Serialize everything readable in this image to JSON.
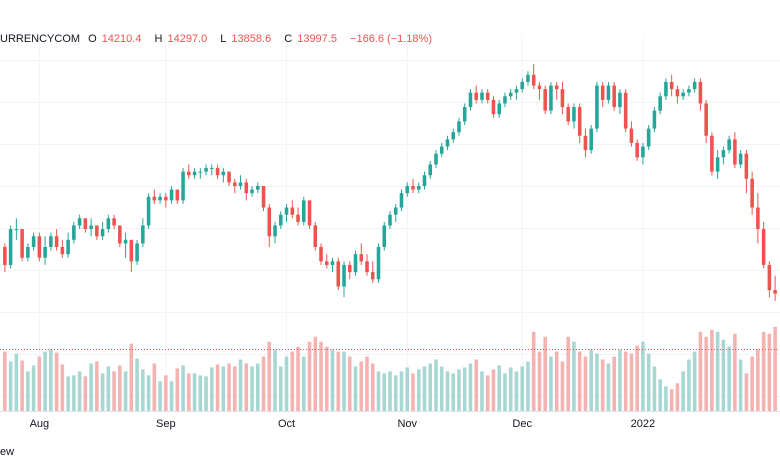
{
  "legend": {
    "symbol": "URRENCYCOM",
    "open_label": "O",
    "open": "14210.4",
    "high_label": "H",
    "high": "14297.0",
    "low_label": "L",
    "low": "13858.6",
    "close_label": "C",
    "close": "13997.5",
    "change": "−166.6 (−1.18%)"
  },
  "footer": {
    "text": "ew"
  },
  "colors": {
    "up": "#26a69a",
    "down": "#ef5350",
    "up_vol": "#a7d7d3",
    "down_vol": "#f4b2b1",
    "grid": "#f0f3fa",
    "text": "#131722"
  },
  "chart_data": {
    "type": "candlestick",
    "title": "",
    "x_tick_labels": [
      "Aug",
      "Sep",
      "Oct",
      "Nov",
      "Dec",
      "2022"
    ],
    "price_range": [
      13800,
      17200
    ],
    "volume_range": [
      0,
      100
    ],
    "candles": [
      [
        14650,
        14700,
        14300,
        14400,
        60
      ],
      [
        14400,
        14950,
        14350,
        14900,
        50
      ],
      [
        14900,
        15050,
        14750,
        14900,
        58
      ],
      [
        14900,
        14900,
        14450,
        14500,
        51
      ],
      [
        14500,
        14700,
        14450,
        14650,
        40
      ],
      [
        14650,
        14850,
        14600,
        14800,
        46
      ],
      [
        14800,
        14850,
        14450,
        14500,
        55
      ],
      [
        14500,
        14800,
        14400,
        14650,
        60
      ],
      [
        14650,
        14850,
        14600,
        14800,
        62
      ],
      [
        14800,
        14900,
        14600,
        14650,
        59
      ],
      [
        14650,
        14750,
        14500,
        14550,
        47
      ],
      [
        14550,
        14850,
        14500,
        14750,
        35
      ],
      [
        14750,
        15000,
        14700,
        14950,
        36
      ],
      [
        14950,
        15100,
        14900,
        15050,
        40
      ],
      [
        15050,
        15050,
        14850,
        14900,
        35
      ],
      [
        14900,
        15050,
        14800,
        14950,
        48
      ],
      [
        14950,
        14950,
        14750,
        14800,
        50
      ],
      [
        14800,
        15000,
        14750,
        14900,
        38
      ],
      [
        14900,
        15100,
        14850,
        15050,
        45
      ],
      [
        15050,
        15100,
        14900,
        14950,
        40
      ],
      [
        14950,
        14950,
        14650,
        14700,
        46
      ],
      [
        14700,
        14850,
        14500,
        14750,
        40
      ],
      [
        14750,
        14750,
        14300,
        14450,
        68
      ],
      [
        14450,
        14750,
        14400,
        14700,
        53
      ],
      [
        14700,
        15050,
        14650,
        14950,
        42
      ],
      [
        14950,
        15400,
        14900,
        15350,
        36
      ],
      [
        15350,
        15450,
        15250,
        15300,
        48
      ],
      [
        15300,
        15400,
        15250,
        15350,
        30
      ],
      [
        15350,
        15400,
        15200,
        15300,
        36
      ],
      [
        15300,
        15500,
        15250,
        15450,
        30
      ],
      [
        15450,
        15450,
        15250,
        15300,
        43
      ],
      [
        15300,
        15750,
        15250,
        15700,
        46
      ],
      [
        15700,
        15800,
        15600,
        15650,
        38
      ],
      [
        15650,
        15750,
        15600,
        15700,
        38
      ],
      [
        15700,
        15750,
        15600,
        15700,
        36
      ],
      [
        15700,
        15800,
        15650,
        15750,
        35
      ],
      [
        15750,
        15800,
        15650,
        15750,
        44
      ],
      [
        15750,
        15800,
        15600,
        15650,
        47
      ],
      [
        15650,
        15750,
        15550,
        15700,
        45
      ],
      [
        15700,
        15700,
        15500,
        15550,
        48
      ],
      [
        15550,
        15600,
        15400,
        15500,
        45
      ],
      [
        15500,
        15650,
        15450,
        15550,
        52
      ],
      [
        15550,
        15600,
        15300,
        15400,
        48
      ],
      [
        15400,
        15500,
        15350,
        15450,
        45
      ],
      [
        15450,
        15550,
        15400,
        15500,
        48
      ],
      [
        15500,
        15500,
        15150,
        15200,
        55
      ],
      [
        15200,
        15250,
        14650,
        14800,
        70
      ],
      [
        14800,
        15000,
        14700,
        14950,
        62
      ],
      [
        14950,
        15150,
        14900,
        15100,
        45
      ],
      [
        15100,
        15250,
        15000,
        15200,
        55
      ],
      [
        15200,
        15300,
        15050,
        15100,
        60
      ],
      [
        15100,
        15200,
        14950,
        15000,
        65
      ],
      [
        15000,
        15350,
        14950,
        15300,
        55
      ],
      [
        15300,
        15300,
        14900,
        14950,
        70
      ],
      [
        14950,
        15000,
        14600,
        14650,
        75
      ],
      [
        14650,
        14700,
        14400,
        14450,
        70
      ],
      [
        14450,
        14550,
        14350,
        14400,
        65
      ],
      [
        14400,
        14500,
        14300,
        14450,
        62
      ],
      [
        14450,
        14500,
        14050,
        14100,
        60
      ],
      [
        14100,
        14450,
        13950,
        14400,
        60
      ],
      [
        14400,
        14450,
        14200,
        14300,
        55
      ],
      [
        14300,
        14600,
        14250,
        14550,
        45
      ],
      [
        14550,
        14700,
        14400,
        14450,
        50
      ],
      [
        14450,
        14550,
        14250,
        14300,
        55
      ],
      [
        14300,
        14450,
        14150,
        14200,
        48
      ],
      [
        14200,
        14700,
        14150,
        14650,
        40
      ],
      [
        14650,
        15000,
        14600,
        14950,
        38
      ],
      [
        14950,
        15150,
        14900,
        15100,
        40
      ],
      [
        15100,
        15250,
        15000,
        15200,
        36
      ],
      [
        15200,
        15450,
        15150,
        15400,
        40
      ],
      [
        15400,
        15550,
        15350,
        15500,
        44
      ],
      [
        15500,
        15600,
        15400,
        15450,
        38
      ],
      [
        15450,
        15550,
        15400,
        15500,
        42
      ],
      [
        15500,
        15700,
        15450,
        15650,
        45
      ],
      [
        15650,
        15850,
        15600,
        15800,
        48
      ],
      [
        15800,
        16000,
        15750,
        15950,
        52
      ],
      [
        15950,
        16100,
        15900,
        16050,
        45
      ],
      [
        16050,
        16200,
        16000,
        16150,
        40
      ],
      [
        16150,
        16300,
        16100,
        16250,
        38
      ],
      [
        16250,
        16450,
        16200,
        16400,
        42
      ],
      [
        16400,
        16650,
        16350,
        16600,
        44
      ],
      [
        16600,
        16850,
        16550,
        16800,
        48
      ],
      [
        16800,
        16900,
        16650,
        16700,
        52
      ],
      [
        16700,
        16850,
        16650,
        16800,
        40
      ],
      [
        16800,
        16850,
        16650,
        16700,
        36
      ],
      [
        16700,
        16750,
        16450,
        16500,
        42
      ],
      [
        16500,
        16700,
        16450,
        16650,
        46
      ],
      [
        16650,
        16800,
        16600,
        16750,
        38
      ],
      [
        16750,
        16850,
        16700,
        16800,
        44
      ],
      [
        16800,
        16900,
        16700,
        16850,
        40
      ],
      [
        16850,
        17000,
        16800,
        16950,
        45
      ],
      [
        16950,
        17100,
        16900,
        17050,
        50
      ],
      [
        17050,
        17200,
        16850,
        16900,
        80
      ],
      [
        16900,
        16950,
        16700,
        16850,
        60
      ],
      [
        16850,
        16900,
        16500,
        16550,
        75
      ],
      [
        16550,
        16950,
        16500,
        16900,
        55
      ],
      [
        16900,
        16950,
        16700,
        16850,
        60
      ],
      [
        16850,
        16950,
        16500,
        16600,
        50
      ],
      [
        16600,
        16650,
        16350,
        16400,
        75
      ],
      [
        16400,
        16650,
        16300,
        16600,
        70
      ],
      [
        16600,
        16650,
        16100,
        16200,
        60
      ],
      [
        16200,
        16300,
        15900,
        16000,
        55
      ],
      [
        16000,
        16350,
        15950,
        16300,
        62
      ],
      [
        16300,
        16950,
        16250,
        16900,
        58
      ],
      [
        16900,
        16950,
        16600,
        16700,
        52
      ],
      [
        16700,
        16950,
        16650,
        16900,
        48
      ],
      [
        16900,
        16950,
        16550,
        16600,
        55
      ],
      [
        16600,
        16850,
        16500,
        16800,
        62
      ],
      [
        16800,
        16850,
        16250,
        16300,
        60
      ],
      [
        16300,
        16400,
        16050,
        16100,
        58
      ],
      [
        16100,
        16150,
        15850,
        15900,
        66
      ],
      [
        15900,
        16100,
        15800,
        16050,
        70
      ],
      [
        16050,
        16350,
        16000,
        16300,
        58
      ],
      [
        16300,
        16600,
        16250,
        16550,
        45
      ],
      [
        16550,
        16800,
        16500,
        16750,
        32
      ],
      [
        16750,
        17000,
        16700,
        16950,
        25
      ],
      [
        16950,
        17050,
        16750,
        16850,
        22
      ],
      [
        16850,
        16900,
        16650,
        16750,
        28
      ],
      [
        16750,
        16850,
        16700,
        16800,
        40
      ],
      [
        16800,
        16900,
        16750,
        16850,
        52
      ],
      [
        16850,
        17000,
        16800,
        16950,
        60
      ],
      [
        16950,
        17000,
        16550,
        16650,
        80
      ],
      [
        16650,
        16700,
        16100,
        16200,
        75
      ],
      [
        16200,
        16250,
        15650,
        15700,
        82
      ],
      [
        15700,
        16000,
        15600,
        15900,
        80
      ],
      [
        15900,
        16050,
        15800,
        16000,
        72
      ],
      [
        16000,
        16200,
        15950,
        16150,
        65
      ],
      [
        16150,
        16250,
        15750,
        15800,
        78
      ],
      [
        15800,
        16000,
        15750,
        15950,
        52
      ],
      [
        15950,
        16000,
        15400,
        15600,
        38
      ],
      [
        15600,
        15700,
        15100,
        15200,
        55
      ],
      [
        15200,
        15400,
        14700,
        14900,
        62
      ],
      [
        14900,
        15000,
        14350,
        14400,
        80
      ],
      [
        14400,
        14450,
        13950,
        14050,
        78
      ],
      [
        14050,
        14250,
        13900,
        14000,
        85
      ]
    ]
  }
}
